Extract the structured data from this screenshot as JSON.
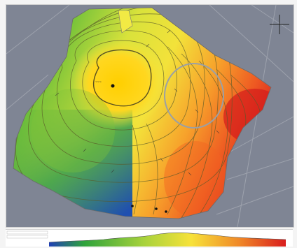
{
  "map": {
    "wells": [
      {
        "name": "well-top",
        "label": ""
      },
      {
        "name": "well-south-1",
        "label": ""
      },
      {
        "name": "well-south-2",
        "label": ""
      },
      {
        "name": "well-south-3",
        "label": ""
      }
    ],
    "colors": {
      "background": "#7f8594",
      "high": "#ffd400",
      "mid": "#f1e63a",
      "green": "#56b53c",
      "low": "#e32b1d",
      "deep": "#1f5bb5"
    },
    "icons": [
      "compass-cross-icon"
    ]
  },
  "legend": {
    "min_label": "",
    "max_label": ""
  }
}
